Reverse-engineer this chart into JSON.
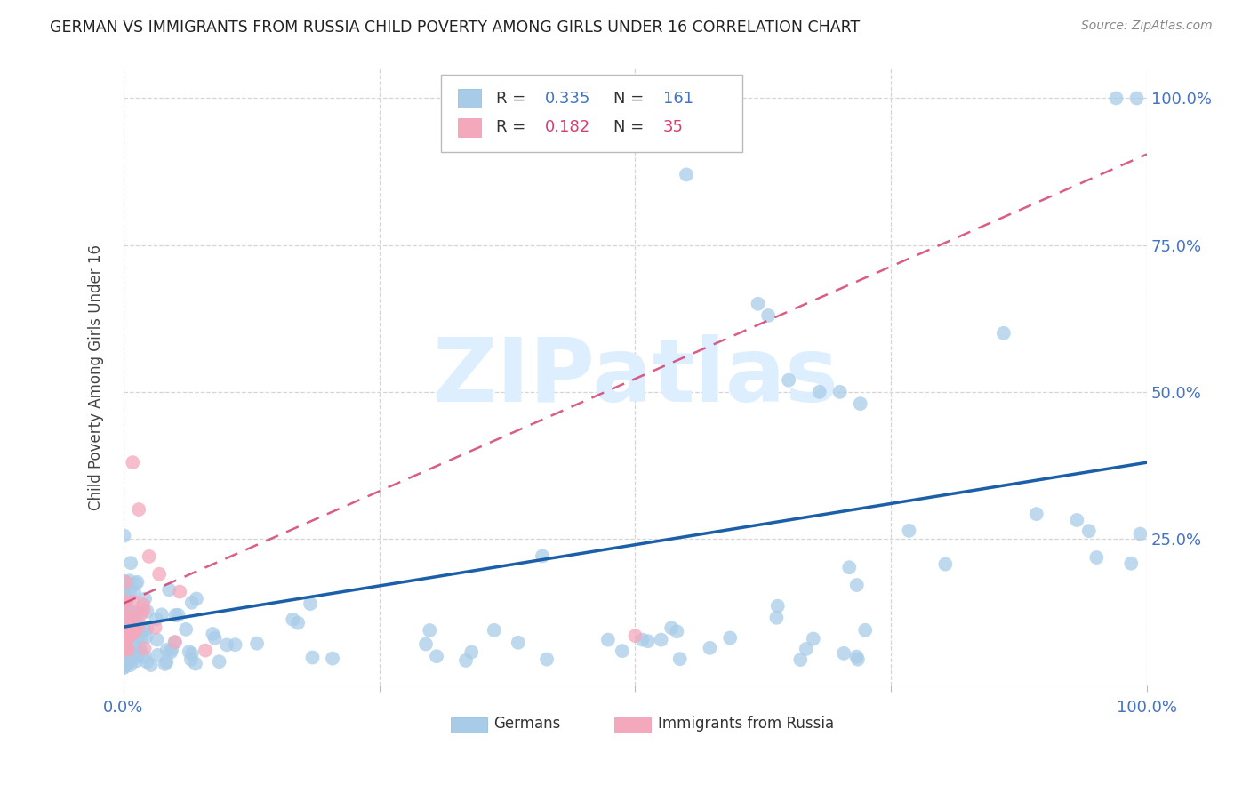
{
  "title": "GERMAN VS IMMIGRANTS FROM RUSSIA CHILD POVERTY AMONG GIRLS UNDER 16 CORRELATION CHART",
  "source": "Source: ZipAtlas.com",
  "ylabel": "Child Poverty Among Girls Under 16",
  "xlim": [
    0.0,
    1.0
  ],
  "ylim": [
    0.0,
    1.05
  ],
  "xticks": [
    0.0,
    0.25,
    0.5,
    0.75,
    1.0
  ],
  "yticks": [
    0.0,
    0.25,
    0.5,
    0.75,
    1.0
  ],
  "xtick_labels": [
    "0.0%",
    "",
    "",
    "",
    "100.0%"
  ],
  "right_ytick_labels": [
    "",
    "25.0%",
    "50.0%",
    "75.0%",
    "100.0%"
  ],
  "german_R": 0.335,
  "german_N": 161,
  "russia_R": 0.182,
  "russia_N": 35,
  "german_color": "#a8cce8",
  "german_line_color": "#1a5fa8",
  "russia_color": "#f4a8bc",
  "russia_line_color": "#d44070",
  "watermark_color": "#ddeeff",
  "background_color": "#ffffff",
  "legend_label_german": "Germans",
  "legend_label_russia": "Immigrants from Russia",
  "german_line_y0": 0.1,
  "german_line_y1": 0.38,
  "russia_line_x0": 0.0,
  "russia_line_x1": 0.17,
  "russia_line_y0": 0.14,
  "russia_line_y1": 0.27
}
